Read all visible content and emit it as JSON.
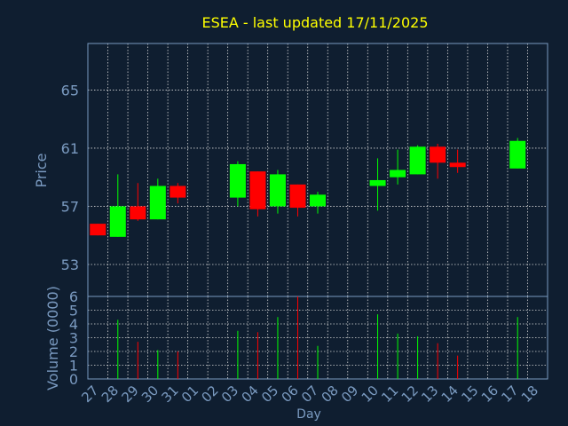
{
  "chart_data": {
    "type": "candlestick",
    "title": "ESEA - last updated 17/11/2025",
    "xlabel": "Day",
    "ylabel_price": "Price",
    "ylabel_volume": "Volume (0000)",
    "price_ylim": [
      50.8,
      68.2
    ],
    "price_ticks": [
      53,
      57,
      61,
      65
    ],
    "volume_ylim": [
      0,
      6
    ],
    "volume_ticks": [
      0,
      1,
      2,
      3,
      4,
      5,
      6
    ],
    "x_labels": [
      "27",
      "28",
      "29",
      "30",
      "31",
      "01",
      "02",
      "03",
      "04",
      "05",
      "06",
      "07",
      "08",
      "09",
      "10",
      "11",
      "12",
      "13",
      "14",
      "15",
      "16",
      "17",
      "18"
    ],
    "grid": true,
    "colors": {
      "background": "#0f1e30",
      "axis_text": "#7a9ac0",
      "title": "#ffff00",
      "grid": "#d8d8d8",
      "up": "#00ff00",
      "down": "#ff0000"
    },
    "candles": [
      {
        "day": "27",
        "open": 55.8,
        "high": 55.8,
        "low": 55.0,
        "close": 55.0,
        "volume": 0
      },
      {
        "day": "28",
        "open": 54.9,
        "high": 59.2,
        "low": 54.9,
        "close": 57.0,
        "volume": 4.3
      },
      {
        "day": "29",
        "open": 57.0,
        "high": 58.6,
        "low": 56.0,
        "close": 56.1,
        "volume": 2.7
      },
      {
        "day": "30",
        "open": 56.1,
        "high": 58.9,
        "low": 56.1,
        "close": 58.4,
        "volume": 2.1
      },
      {
        "day": "31",
        "open": 58.4,
        "high": 58.6,
        "low": 57.2,
        "close": 57.6,
        "volume": 2.0
      },
      {
        "day": "03",
        "open": 57.6,
        "high": 60.1,
        "low": 57.0,
        "close": 59.9,
        "volume": 3.5
      },
      {
        "day": "04",
        "open": 59.4,
        "high": 59.4,
        "low": 56.3,
        "close": 56.8,
        "volume": 3.4
      },
      {
        "day": "05",
        "open": 57.0,
        "high": 59.5,
        "low": 56.5,
        "close": 59.2,
        "volume": 4.5
      },
      {
        "day": "06",
        "open": 58.5,
        "high": 58.5,
        "low": 56.3,
        "close": 56.9,
        "volume": 6.0
      },
      {
        "day": "07",
        "open": 57.0,
        "high": 58.0,
        "low": 56.5,
        "close": 57.8,
        "volume": 2.4
      },
      {
        "day": "10",
        "open": 58.4,
        "high": 60.3,
        "low": 56.7,
        "close": 58.8,
        "volume": 4.7
      },
      {
        "day": "11",
        "open": 59.0,
        "high": 60.9,
        "low": 58.5,
        "close": 59.5,
        "volume": 3.3
      },
      {
        "day": "12",
        "open": 59.2,
        "high": 61.2,
        "low": 59.2,
        "close": 61.1,
        "volume": 3.1
      },
      {
        "day": "13",
        "open": 61.1,
        "high": 61.3,
        "low": 58.9,
        "close": 60.0,
        "volume": 2.6
      },
      {
        "day": "14",
        "open": 60.0,
        "high": 60.9,
        "low": 59.3,
        "close": 59.7,
        "volume": 1.7
      },
      {
        "day": "17",
        "open": 59.6,
        "high": 61.7,
        "low": 59.6,
        "close": 61.5,
        "volume": 4.5
      }
    ]
  }
}
